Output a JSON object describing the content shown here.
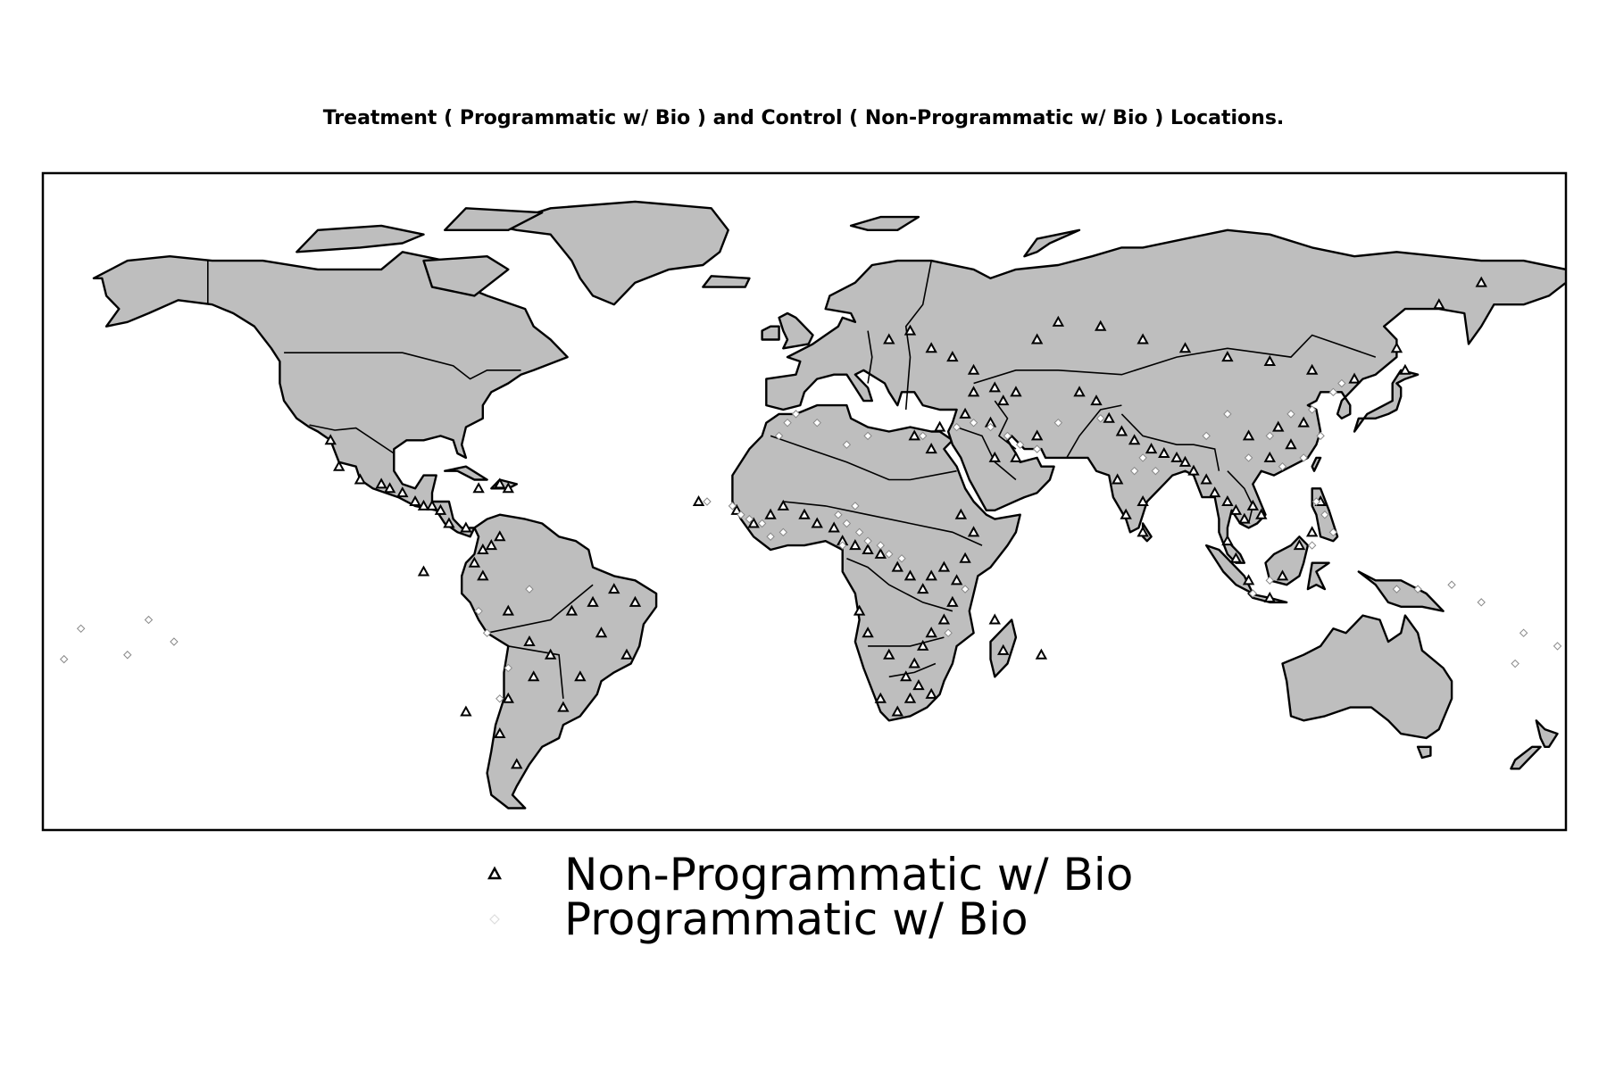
{
  "title": "Treatment ( Programmatic w/ Bio ) and Control ( Non-Programmatic w/ Bio ) Locations.",
  "colors": {
    "land": "#bebebe",
    "border": "#000000",
    "ocean": "#ffffff",
    "treatment": "#ffffff",
    "control": "#000000"
  },
  "legend": [
    {
      "label": "Non-Programmatic w/ Bio",
      "marker": "triangle-icon",
      "color": "#000000"
    },
    {
      "label": "Programmatic w/ Bio",
      "marker": "diamond-icon",
      "color": "#ffffff"
    }
  ],
  "chart_data": {
    "type": "scatter",
    "projection": "equirectangular",
    "xlim": [
      -180,
      180
    ],
    "ylim": [
      -60,
      90
    ],
    "series": [
      {
        "name": "Non-Programmatic w/ Bio",
        "marker": "triangle",
        "points": [
          [
            -105,
            20
          ],
          [
            -100,
            19
          ],
          [
            -98,
            18
          ],
          [
            -95,
            17
          ],
          [
            -92,
            15
          ],
          [
            -90,
            14
          ],
          [
            -88,
            14
          ],
          [
            -86,
            13
          ],
          [
            -84,
            10
          ],
          [
            -80,
            9
          ],
          [
            -77,
            18
          ],
          [
            -72,
            19
          ],
          [
            -70,
            18
          ],
          [
            -76,
            4
          ],
          [
            -74,
            5
          ],
          [
            -72,
            7
          ],
          [
            -78,
            1
          ],
          [
            -76,
            -2
          ],
          [
            -70,
            -10
          ],
          [
            -65,
            -17
          ],
          [
            -60,
            -20
          ],
          [
            -55,
            -10
          ],
          [
            -50,
            -8
          ],
          [
            -45,
            -5
          ],
          [
            -40,
            -8
          ],
          [
            -42,
            -20
          ],
          [
            -48,
            -15
          ],
          [
            -53,
            -25
          ],
          [
            -57,
            -32
          ],
          [
            -64,
            -25
          ],
          [
            -70,
            -30
          ],
          [
            -72,
            -38
          ],
          [
            -68,
            -45
          ],
          [
            -90,
            -1
          ],
          [
            -80,
            -33
          ],
          [
            -110,
            23
          ],
          [
            -112,
            29
          ],
          [
            -16,
            13
          ],
          [
            -12,
            10
          ],
          [
            -8,
            12
          ],
          [
            -5,
            14
          ],
          [
            0,
            12
          ],
          [
            3,
            10
          ],
          [
            7,
            9
          ],
          [
            9,
            6
          ],
          [
            12,
            5
          ],
          [
            15,
            4
          ],
          [
            18,
            3
          ],
          [
            22,
            0
          ],
          [
            25,
            -2
          ],
          [
            28,
            -5
          ],
          [
            30,
            -2
          ],
          [
            33,
            0
          ],
          [
            36,
            -3
          ],
          [
            38,
            2
          ],
          [
            40,
            8
          ],
          [
            37,
            12
          ],
          [
            35,
            -8
          ],
          [
            33,
            -12
          ],
          [
            30,
            -15
          ],
          [
            28,
            -18
          ],
          [
            26,
            -22
          ],
          [
            24,
            -25
          ],
          [
            27,
            -27
          ],
          [
            30,
            -29
          ],
          [
            25,
            -30
          ],
          [
            22,
            -33
          ],
          [
            18,
            -30
          ],
          [
            20,
            -20
          ],
          [
            15,
            -15
          ],
          [
            13,
            -10
          ],
          [
            47,
            -19
          ],
          [
            45,
            -12
          ],
          [
            56,
            -20
          ],
          [
            -25,
            15
          ],
          [
            20,
            52
          ],
          [
            25,
            54
          ],
          [
            30,
            50
          ],
          [
            35,
            48
          ],
          [
            40,
            45
          ],
          [
            45,
            41
          ],
          [
            50,
            40
          ],
          [
            55,
            52
          ],
          [
            60,
            56
          ],
          [
            70,
            55
          ],
          [
            80,
            52
          ],
          [
            90,
            50
          ],
          [
            100,
            48
          ],
          [
            110,
            47
          ],
          [
            120,
            45
          ],
          [
            130,
            43
          ],
          [
            140,
            50
          ],
          [
            142,
            45
          ],
          [
            150,
            60
          ],
          [
            160,
            65
          ],
          [
            65,
            40
          ],
          [
            69,
            38
          ],
          [
            72,
            34
          ],
          [
            75,
            31
          ],
          [
            78,
            29
          ],
          [
            82,
            27
          ],
          [
            85,
            26
          ],
          [
            88,
            25
          ],
          [
            90,
            24
          ],
          [
            92,
            22
          ],
          [
            95,
            20
          ],
          [
            97,
            17
          ],
          [
            100,
            15
          ],
          [
            102,
            13
          ],
          [
            104,
            11
          ],
          [
            106,
            14
          ],
          [
            108,
            12
          ],
          [
            100,
            6
          ],
          [
            102,
            2
          ],
          [
            105,
            -3
          ],
          [
            110,
            -7
          ],
          [
            113,
            -2
          ],
          [
            117,
            5
          ],
          [
            120,
            8
          ],
          [
            122,
            15
          ],
          [
            110,
            25
          ],
          [
            105,
            30
          ],
          [
            112,
            32
          ],
          [
            115,
            28
          ],
          [
            118,
            33
          ],
          [
            50,
            25
          ],
          [
            55,
            30
          ],
          [
            45,
            25
          ],
          [
            38,
            35
          ],
          [
            32,
            32
          ],
          [
            30,
            27
          ],
          [
            26,
            30
          ],
          [
            44,
            33
          ],
          [
            47,
            38
          ],
          [
            40,
            40
          ],
          [
            80,
            15
          ],
          [
            80,
            8
          ],
          [
            74,
            20
          ],
          [
            76,
            12
          ]
        ]
      },
      {
        "name": "Programmatic w/ Bio",
        "marker": "diamond",
        "points": [
          [
            -17,
            14
          ],
          [
            -15,
            12
          ],
          [
            -13,
            11
          ],
          [
            -10,
            10
          ],
          [
            -8,
            7
          ],
          [
            -5,
            8
          ],
          [
            8,
            12
          ],
          [
            10,
            10
          ],
          [
            13,
            8
          ],
          [
            15,
            6
          ],
          [
            18,
            5
          ],
          [
            20,
            3
          ],
          [
            23,
            2
          ],
          [
            12,
            14
          ],
          [
            9,
            5
          ],
          [
            -4,
            33
          ],
          [
            -2,
            35
          ],
          [
            -6,
            30
          ],
          [
            3,
            33
          ],
          [
            15,
            30
          ],
          [
            10,
            28
          ],
          [
            28,
            30
          ],
          [
            36,
            32
          ],
          [
            40,
            33
          ],
          [
            44,
            32
          ],
          [
            48,
            30
          ],
          [
            51,
            28
          ],
          [
            55,
            27
          ],
          [
            60,
            33
          ],
          [
            70,
            34
          ],
          [
            78,
            22
          ],
          [
            80,
            25
          ],
          [
            83,
            22
          ],
          [
            105,
            25
          ],
          [
            110,
            30
          ],
          [
            115,
            35
          ],
          [
            120,
            36
          ],
          [
            118,
            25
          ],
          [
            113,
            23
          ],
          [
            122,
            30
          ],
          [
            95,
            30
          ],
          [
            100,
            35
          ],
          [
            125,
            40
          ],
          [
            127,
            42
          ],
          [
            121,
            15
          ],
          [
            123,
            12
          ],
          [
            125,
            8
          ],
          [
            120,
            5
          ],
          [
            106,
            -6
          ],
          [
            110,
            -3
          ],
          [
            140,
            -5
          ],
          [
            145,
            -5
          ],
          [
            153,
            -4
          ],
          [
            160,
            -8
          ],
          [
            170,
            -15
          ],
          [
            178,
            -18
          ],
          [
            168,
            -22
          ],
          [
            -149,
            -17
          ],
          [
            -155,
            -12
          ],
          [
            -160,
            -20
          ],
          [
            -171,
            -14
          ],
          [
            -175,
            -21
          ],
          [
            -77,
            -10
          ],
          [
            -75,
            -15
          ],
          [
            -70,
            -23
          ],
          [
            -72,
            -30
          ],
          [
            -65,
            -5
          ],
          [
            -23,
            15
          ],
          [
            34,
            -15
          ],
          [
            38,
            -5
          ]
        ]
      }
    ]
  }
}
